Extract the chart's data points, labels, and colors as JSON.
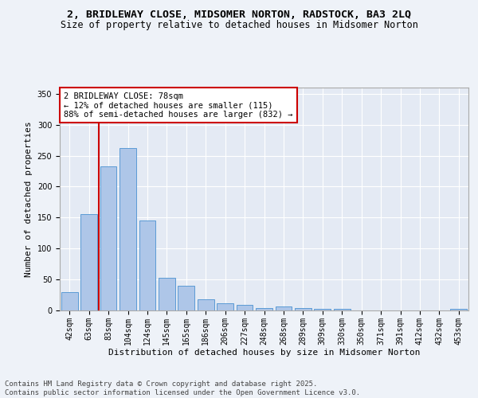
{
  "title1": "2, BRIDLEWAY CLOSE, MIDSOMER NORTON, RADSTOCK, BA3 2LQ",
  "title2": "Size of property relative to detached houses in Midsomer Norton",
  "xlabel": "Distribution of detached houses by size in Midsomer Norton",
  "ylabel": "Number of detached properties",
  "categories": [
    "42sqm",
    "63sqm",
    "83sqm",
    "104sqm",
    "124sqm",
    "145sqm",
    "165sqm",
    "186sqm",
    "206sqm",
    "227sqm",
    "248sqm",
    "268sqm",
    "289sqm",
    "309sqm",
    "330sqm",
    "350sqm",
    "371sqm",
    "391sqm",
    "412sqm",
    "432sqm",
    "453sqm"
  ],
  "values": [
    30,
    155,
    233,
    262,
    145,
    53,
    40,
    18,
    11,
    9,
    4,
    6,
    4,
    3,
    3,
    0,
    0,
    0,
    0,
    0,
    3
  ],
  "bar_color": "#aec6e8",
  "bar_edge_color": "#5b9bd5",
  "vline_color": "#cc0000",
  "annotation_text": "2 BRIDLEWAY CLOSE: 78sqm\n← 12% of detached houses are smaller (115)\n88% of semi-detached houses are larger (832) →",
  "annotation_box_color": "#ffffff",
  "annotation_box_edge": "#cc0000",
  "ylim": [
    0,
    360
  ],
  "yticks": [
    0,
    50,
    100,
    150,
    200,
    250,
    300,
    350
  ],
  "footer": "Contains HM Land Registry data © Crown copyright and database right 2025.\nContains public sector information licensed under the Open Government Licence v3.0.",
  "bg_color": "#eef2f8",
  "plot_bg_color": "#e4eaf4",
  "grid_color": "#ffffff",
  "title1_fontsize": 9.5,
  "title2_fontsize": 8.5,
  "ylabel_fontsize": 8,
  "xlabel_fontsize": 8,
  "tick_fontsize": 7,
  "annotation_fontsize": 7.5,
  "footer_fontsize": 6.5
}
